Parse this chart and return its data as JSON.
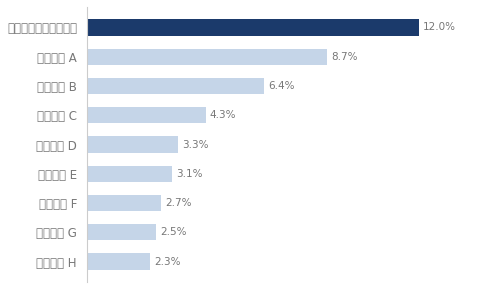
{
  "categories": [
    "サービス H",
    "サービス G",
    "サービス F",
    "サービス E",
    "サービス D",
    "サービス C",
    "サービス B",
    "サービス A",
    "オフィス宅ふぁいる便"
  ],
  "values": [
    2.3,
    2.5,
    2.7,
    3.1,
    3.3,
    4.3,
    6.4,
    8.7,
    12.0
  ],
  "bar_colors": [
    "#c5d5e8",
    "#c5d5e8",
    "#c5d5e8",
    "#c5d5e8",
    "#c5d5e8",
    "#c5d5e8",
    "#c5d5e8",
    "#c5d5e8",
    "#1b3a6b"
  ],
  "background_color": "#ffffff",
  "label_color": "#777777",
  "value_color": "#777777",
  "xlim": [
    0,
    14.0
  ],
  "bar_height": 0.55,
  "value_fontsize": 7.5,
  "label_fontsize": 8.5
}
